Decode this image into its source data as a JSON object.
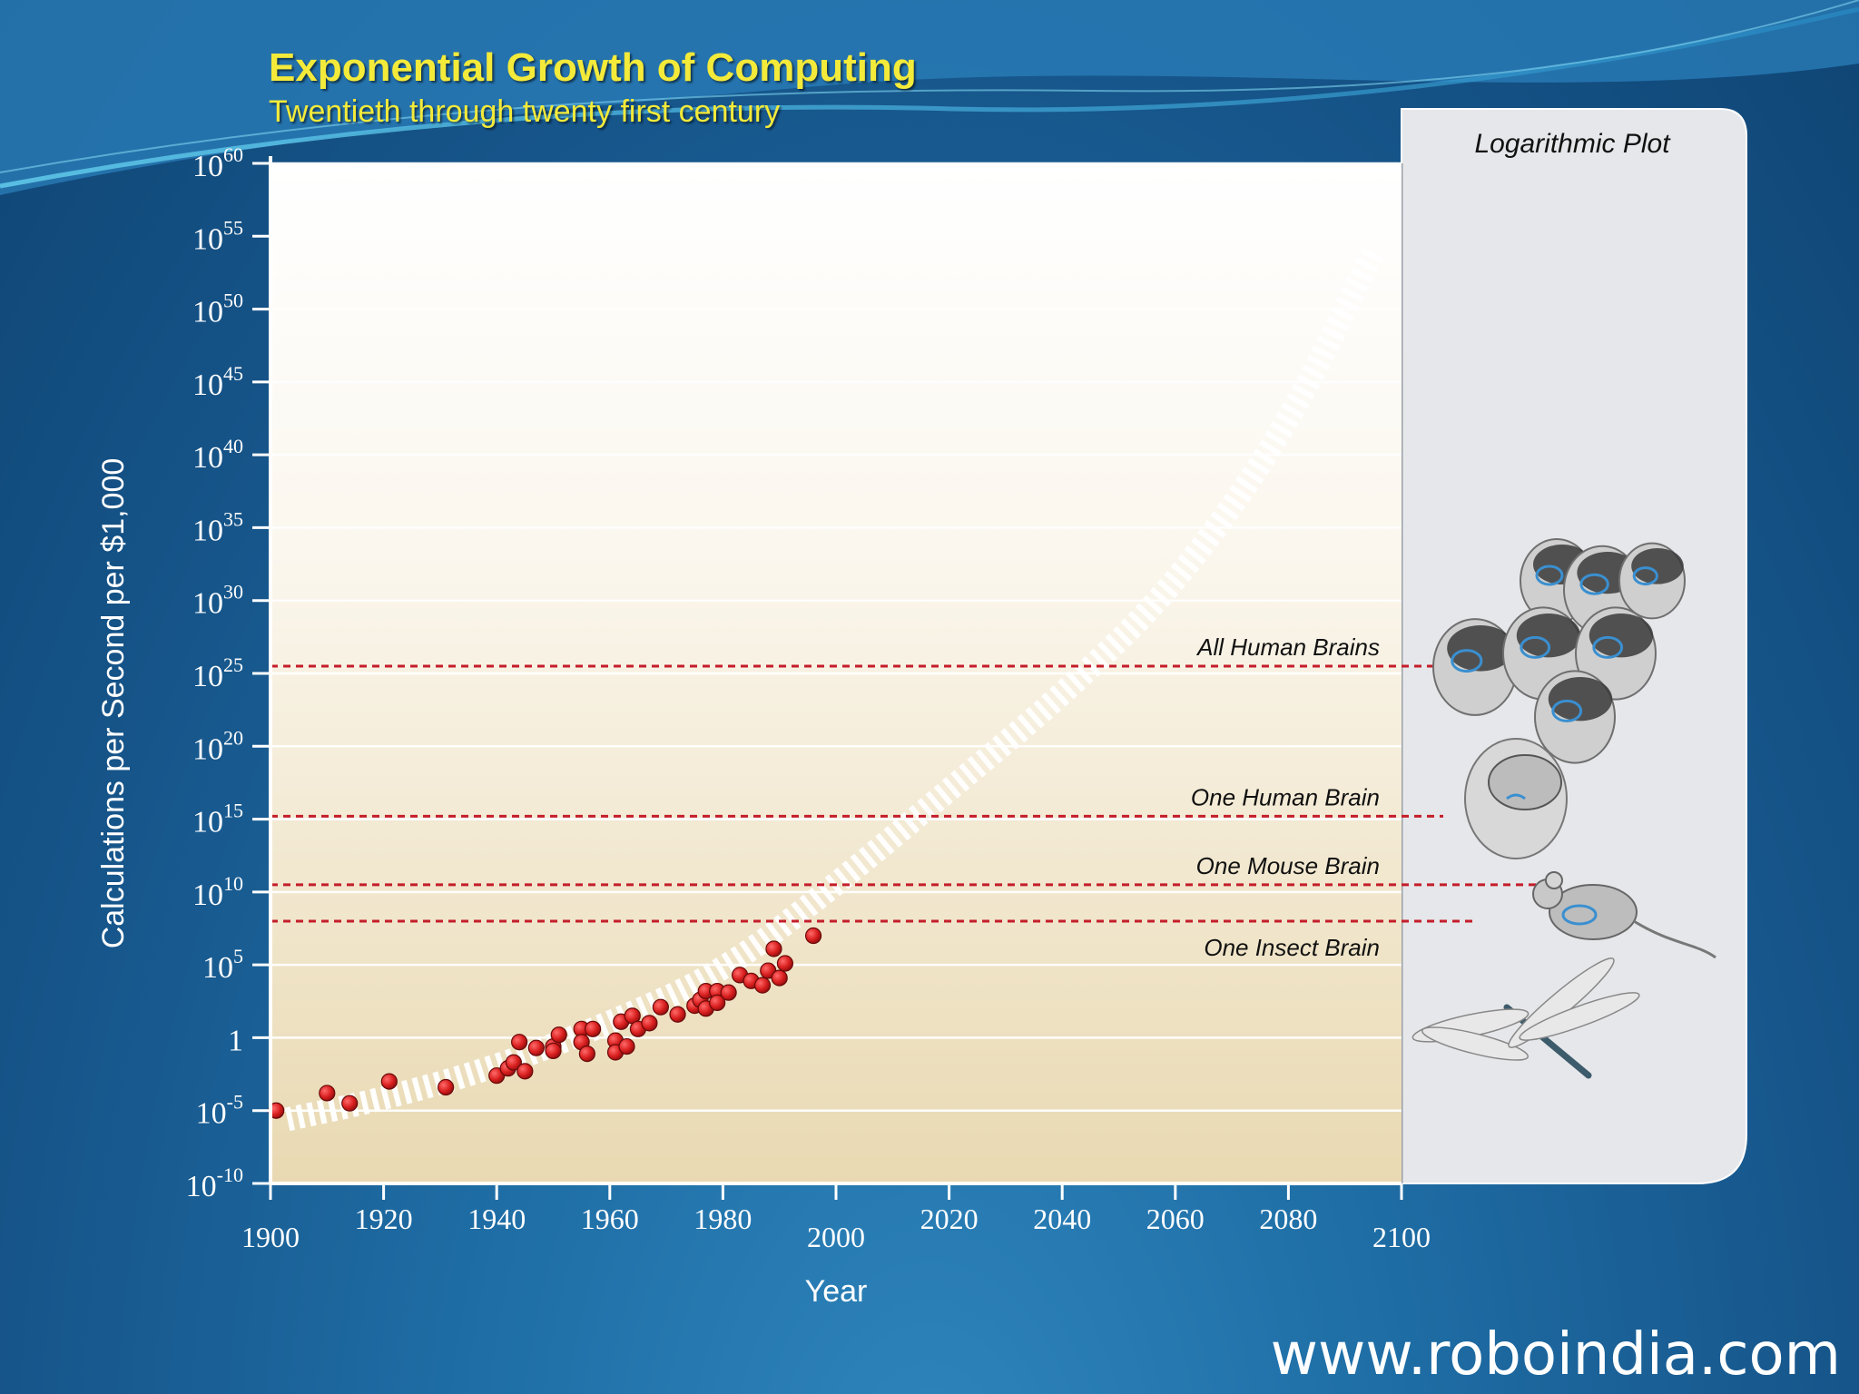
{
  "header": {
    "title": "Exponential Growth of Computing",
    "subtitle": "Twentieth through twenty first century"
  },
  "footer": {
    "website": "www.roboindia.com"
  },
  "chart_data": {
    "type": "scatter",
    "title": "Exponential Growth of Computing",
    "subtitle": "Twentieth through twenty first century",
    "xlabel": "Year",
    "ylabel": "Calculations per Second per $1,000",
    "xlim": [
      1900,
      2100
    ],
    "x_ticks": [
      1900,
      1920,
      1940,
      1960,
      1980,
      2000,
      2020,
      2040,
      2060,
      2080,
      2100
    ],
    "y_scale": "log",
    "ylim_exponent": [
      -10,
      60
    ],
    "y_ticks": [
      {
        "exp": 60,
        "label_base": "10",
        "label_sup": "60"
      },
      {
        "exp": 55,
        "label_base": "10",
        "label_sup": "55"
      },
      {
        "exp": 50,
        "label_base": "10",
        "label_sup": "50"
      },
      {
        "exp": 45,
        "label_base": "10",
        "label_sup": "45"
      },
      {
        "exp": 40,
        "label_base": "10",
        "label_sup": "40"
      },
      {
        "exp": 35,
        "label_base": "10",
        "label_sup": "35"
      },
      {
        "exp": 30,
        "label_base": "10",
        "label_sup": "30"
      },
      {
        "exp": 25,
        "label_base": "10",
        "label_sup": "25"
      },
      {
        "exp": 20,
        "label_base": "10",
        "label_sup": "20"
      },
      {
        "exp": 15,
        "label_base": "10",
        "label_sup": "15"
      },
      {
        "exp": 10,
        "label_base": "10",
        "label_sup": "10"
      },
      {
        "exp": 5,
        "label_base": "10",
        "label_sup": "5"
      },
      {
        "exp": 0,
        "label_base": "1",
        "label_sup": ""
      },
      {
        "exp": -5,
        "label_base": "10",
        "label_sup": "-5"
      },
      {
        "exp": -10,
        "label_base": "10",
        "label_sup": "-10"
      }
    ],
    "grid": true,
    "side_panel_title": "Logarithmic Plot",
    "thresholds": [
      {
        "label": "All Human Brains",
        "exp": 25.5
      },
      {
        "label": "One Human Brain",
        "exp": 15.2
      },
      {
        "label": "One Mouse Brain",
        "exp": 10.5
      },
      {
        "label": "One Insect Brain",
        "exp": 8.0
      }
    ],
    "trend_curve": {
      "style": "dashed white band",
      "points": [
        [
          1903,
          -5.6
        ],
        [
          1920,
          -4.2
        ],
        [
          1940,
          -2.0
        ],
        [
          1960,
          1.0
        ],
        [
          1980,
          4.5
        ],
        [
          2000,
          10.5
        ],
        [
          2020,
          17.0
        ],
        [
          2040,
          23.5
        ],
        [
          2060,
          31.0
        ],
        [
          2080,
          42.0
        ],
        [
          2095,
          54.0
        ]
      ]
    },
    "series": [
      {
        "color": "#d91e1e",
        "points": [
          [
            1901,
            -5.0
          ],
          [
            1910,
            -3.8
          ],
          [
            1914,
            -4.5
          ],
          [
            1921,
            -3.0
          ],
          [
            1931,
            -3.4
          ],
          [
            1940,
            -2.6
          ],
          [
            1942,
            -2.1
          ],
          [
            1943,
            -1.7
          ],
          [
            1944,
            -0.3
          ],
          [
            1945,
            -2.3
          ],
          [
            1947,
            -0.7
          ],
          [
            1950,
            -0.6
          ],
          [
            1950,
            -0.9
          ],
          [
            1951,
            0.2
          ],
          [
            1955,
            0.6
          ],
          [
            1955,
            -0.3
          ],
          [
            1956,
            -1.1
          ],
          [
            1957,
            0.6
          ],
          [
            1961,
            -0.2
          ],
          [
            1961,
            -1.0
          ],
          [
            1962,
            1.1
          ],
          [
            1963,
            -0.6
          ],
          [
            1964,
            1.5
          ],
          [
            1965,
            0.6
          ],
          [
            1967,
            1.0
          ],
          [
            1969,
            2.1
          ],
          [
            1972,
            1.6
          ],
          [
            1975,
            2.2
          ],
          [
            1976,
            2.6
          ],
          [
            1977,
            3.2
          ],
          [
            1977,
            2.0
          ],
          [
            1979,
            3.2
          ],
          [
            1979,
            2.4
          ],
          [
            1981,
            3.1
          ],
          [
            1983,
            4.3
          ],
          [
            1985,
            3.9
          ],
          [
            1987,
            3.6
          ],
          [
            1988,
            4.6
          ],
          [
            1989,
            6.1
          ],
          [
            1990,
            4.1
          ],
          [
            1991,
            5.1
          ],
          [
            1996,
            7.0
          ]
        ]
      }
    ],
    "colors": {
      "plot_top": "#ffffff",
      "plot_bottom": "#e9d9b2",
      "threshold_line": "#c41e2a",
      "panel": "#e6e7ea",
      "title": "#f3ea3a"
    }
  }
}
